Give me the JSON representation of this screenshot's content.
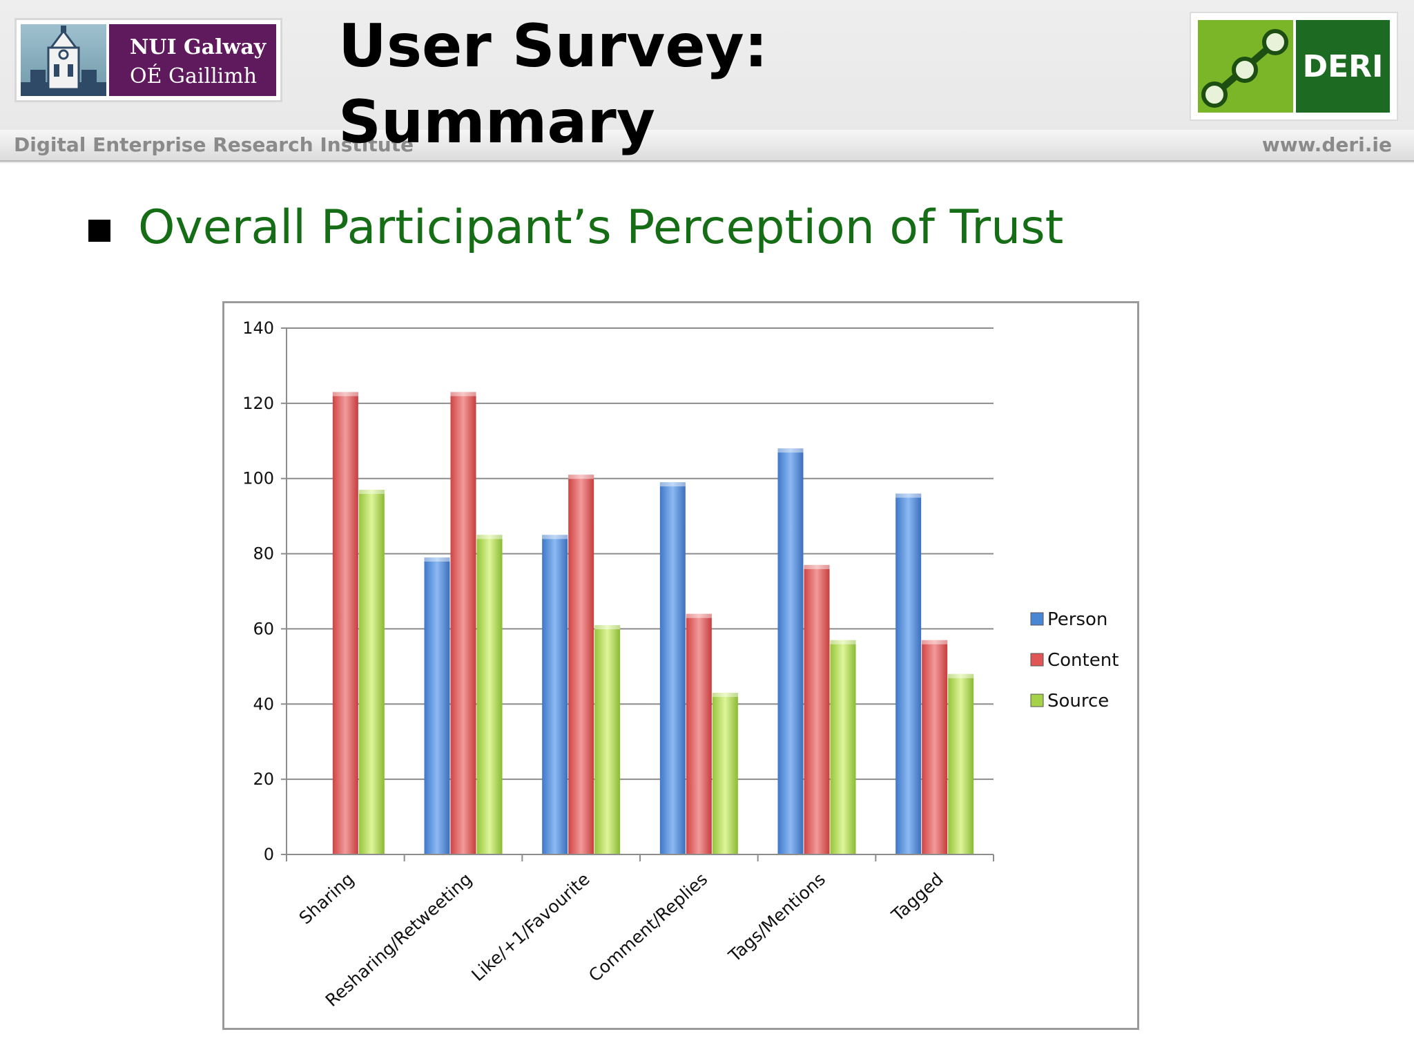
{
  "header": {
    "title_line1": "User Survey:",
    "title_line2": "Summary",
    "institute": "Digital Enterprise Research Institute",
    "website": "www.deri.ie",
    "nui_logo_line1": "NUI Galway",
    "nui_logo_line2": "OÉ Gaillimh",
    "deri_logo_text": "DERI"
  },
  "bullet": {
    "text": "Overall Participant’s Perception of Trust"
  },
  "colors": {
    "heading": "#156e15",
    "person": "#4a86d6",
    "content": "#e05555",
    "source": "#a6d24a"
  },
  "chart_data": {
    "type": "bar",
    "categories": [
      "Sharing",
      "Resharing/Retweeting",
      "Like/+1/Favourite",
      "Comment/Replies",
      "Tags/Mentions",
      "Tagged"
    ],
    "series": [
      {
        "name": "Person",
        "values": [
          0,
          79,
          85,
          99,
          108,
          96
        ]
      },
      {
        "name": "Content",
        "values": [
          123,
          123,
          101,
          64,
          77,
          57
        ]
      },
      {
        "name": "Source",
        "values": [
          97,
          85,
          61,
          43,
          57,
          48
        ]
      }
    ],
    "ylim": [
      0,
      140
    ],
    "yticks": [
      "0",
      "20",
      "40",
      "60",
      "80",
      "100",
      "120",
      "140"
    ],
    "grid": true,
    "legend_position": "right"
  }
}
